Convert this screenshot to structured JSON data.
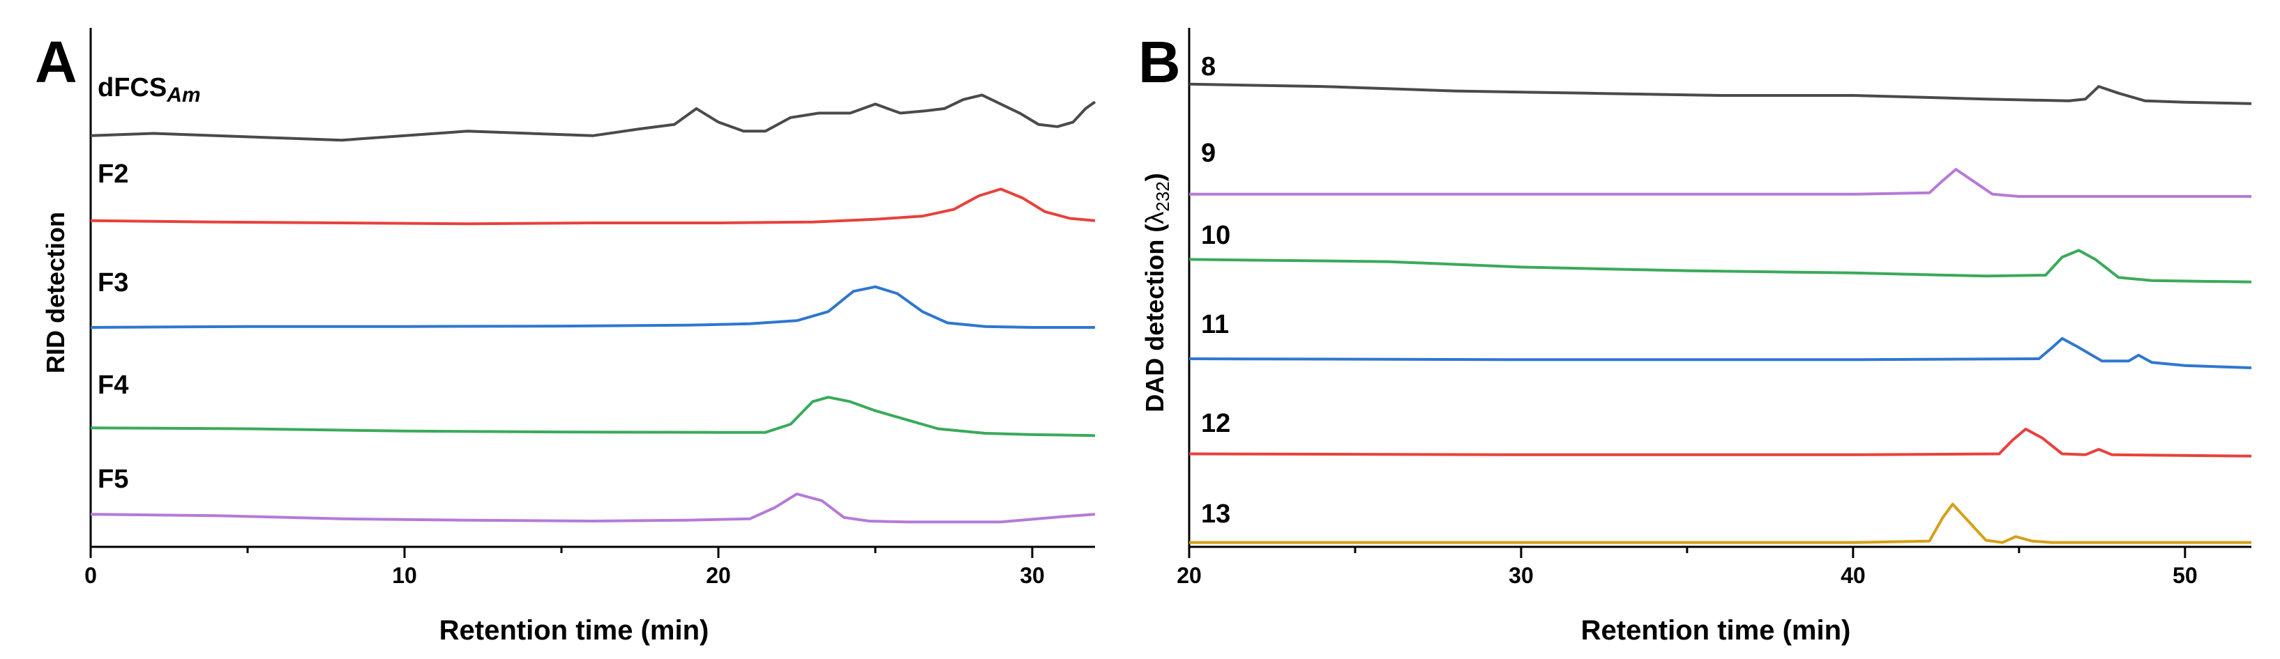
{
  "chart_data": [
    {
      "panel_label": "A",
      "type": "line",
      "xlabel": "Retention time (min)",
      "ylabel": "RID detection",
      "xlim": [
        0,
        32
      ],
      "xticks": [
        0,
        10,
        20,
        30
      ],
      "series": [
        {
          "name": "dFCS",
          "subscript": "Am",
          "color": "#4a4a4a",
          "x": [
            0,
            2,
            4,
            6,
            8,
            10,
            12,
            14,
            16,
            17.5,
            18.6,
            19.3,
            20.0,
            20.8,
            21.5,
            22.3,
            23.2,
            24.2,
            25.0,
            25.8,
            26.6,
            27.2,
            27.8,
            28.4,
            29.0,
            29.6,
            30.2,
            30.8,
            31.3,
            31.7,
            32
          ],
          "y": [
            0.05,
            0.1,
            0.05,
            0.0,
            -0.05,
            0.05,
            0.15,
            0.1,
            0.05,
            0.2,
            0.3,
            0.65,
            0.35,
            0.15,
            0.15,
            0.45,
            0.55,
            0.55,
            0.75,
            0.55,
            0.6,
            0.65,
            0.85,
            0.95,
            0.75,
            0.55,
            0.3,
            0.25,
            0.35,
            0.65,
            0.8
          ]
        },
        {
          "name": "F2",
          "color": "#e8413c",
          "x": [
            0,
            4,
            8,
            12,
            16,
            20,
            23,
            25,
            26.5,
            27.5,
            28.3,
            29.0,
            29.7,
            30.4,
            31.2,
            32
          ],
          "y": [
            0.05,
            0.02,
            0.0,
            -0.02,
            0.0,
            0.0,
            0.02,
            0.08,
            0.15,
            0.3,
            0.6,
            0.75,
            0.55,
            0.25,
            0.1,
            0.05
          ]
        },
        {
          "name": "F3",
          "color": "#2f77d0",
          "x": [
            0,
            5,
            10,
            15,
            19,
            21,
            22.5,
            23.5,
            24.3,
            25.0,
            25.7,
            26.5,
            27.3,
            28.5,
            30,
            32
          ],
          "y": [
            0.0,
            0.02,
            0.02,
            0.03,
            0.05,
            0.08,
            0.15,
            0.35,
            0.8,
            0.9,
            0.75,
            0.35,
            0.1,
            0.02,
            0.0,
            0.0
          ]
        },
        {
          "name": "F4",
          "color": "#3aaa5a",
          "x": [
            0,
            5,
            10,
            15,
            20,
            21.5,
            22.3,
            23.0,
            23.5,
            24.2,
            25.0,
            26.0,
            27.0,
            28.5,
            30,
            32
          ],
          "y": [
            0.12,
            0.1,
            0.05,
            0.03,
            0.02,
            0.02,
            0.2,
            0.7,
            0.8,
            0.7,
            0.5,
            0.3,
            0.1,
            0.0,
            -0.03,
            -0.05
          ]
        },
        {
          "name": "F5",
          "color": "#b57ad8",
          "x": [
            0,
            4,
            8,
            12,
            16,
            19,
            21.0,
            21.8,
            22.5,
            23.3,
            24.0,
            24.8,
            26,
            29,
            31,
            32
          ],
          "y": [
            0.15,
            0.12,
            0.05,
            0.02,
            0.0,
            0.02,
            0.05,
            0.3,
            0.6,
            0.45,
            0.08,
            0.0,
            -0.02,
            -0.02,
            0.1,
            0.15
          ]
        }
      ]
    },
    {
      "panel_label": "B",
      "type": "line",
      "xlabel": "Retention time (min)",
      "ylabel": "DAD detection (λ232)",
      "xlim": [
        20,
        52
      ],
      "xticks": [
        20,
        30,
        40,
        50
      ],
      "series": [
        {
          "name": "8",
          "color": "#4a4a4a",
          "x": [
            20,
            24,
            28,
            32,
            36,
            40,
            44,
            46.5,
            47.0,
            47.4,
            48.0,
            48.8,
            50,
            52
          ],
          "y": [
            0.45,
            0.4,
            0.3,
            0.25,
            0.2,
            0.2,
            0.12,
            0.08,
            0.12,
            0.4,
            0.25,
            0.08,
            0.05,
            0.02
          ]
        },
        {
          "name": "9",
          "color": "#b57ad8",
          "x": [
            20,
            30,
            40,
            42.3,
            42.7,
            43.1,
            43.6,
            44.2,
            45,
            52
          ],
          "y": [
            0.05,
            0.05,
            0.05,
            0.08,
            0.35,
            0.6,
            0.35,
            0.05,
            0.0,
            0.0
          ]
        },
        {
          "name": "10",
          "color": "#3aaa5a",
          "x": [
            20,
            26,
            30,
            35,
            40,
            44,
            45.8,
            46.3,
            46.8,
            47.3,
            48.0,
            49,
            52
          ],
          "y": [
            0.55,
            0.5,
            0.38,
            0.3,
            0.25,
            0.18,
            0.2,
            0.6,
            0.75,
            0.55,
            0.15,
            0.08,
            0.05
          ]
        },
        {
          "name": "11",
          "color": "#2f77d0",
          "x": [
            20,
            30,
            40,
            45.6,
            46.0,
            46.3,
            46.8,
            47.5,
            48.3,
            48.6,
            49.0,
            50,
            52
          ],
          "y": [
            0.2,
            0.18,
            0.18,
            0.2,
            0.45,
            0.65,
            0.45,
            0.15,
            0.15,
            0.28,
            0.12,
            0.05,
            0.0
          ]
        },
        {
          "name": "12",
          "color": "#e8413c",
          "x": [
            20,
            30,
            40,
            44.4,
            44.8,
            45.2,
            45.7,
            46.3,
            47.0,
            47.4,
            47.8,
            52
          ],
          "y": [
            0.1,
            0.08,
            0.08,
            0.1,
            0.4,
            0.65,
            0.45,
            0.1,
            0.08,
            0.2,
            0.08,
            0.05
          ]
        },
        {
          "name": "13",
          "color": "#d4a017",
          "x": [
            20,
            30,
            40,
            42.3,
            42.7,
            43.0,
            43.5,
            44.0,
            44.5,
            44.9,
            45.4,
            46,
            52
          ],
          "y": [
            0.05,
            0.05,
            0.05,
            0.08,
            0.6,
            0.9,
            0.5,
            0.1,
            0.05,
            0.18,
            0.08,
            0.05,
            0.05
          ]
        }
      ]
    }
  ]
}
